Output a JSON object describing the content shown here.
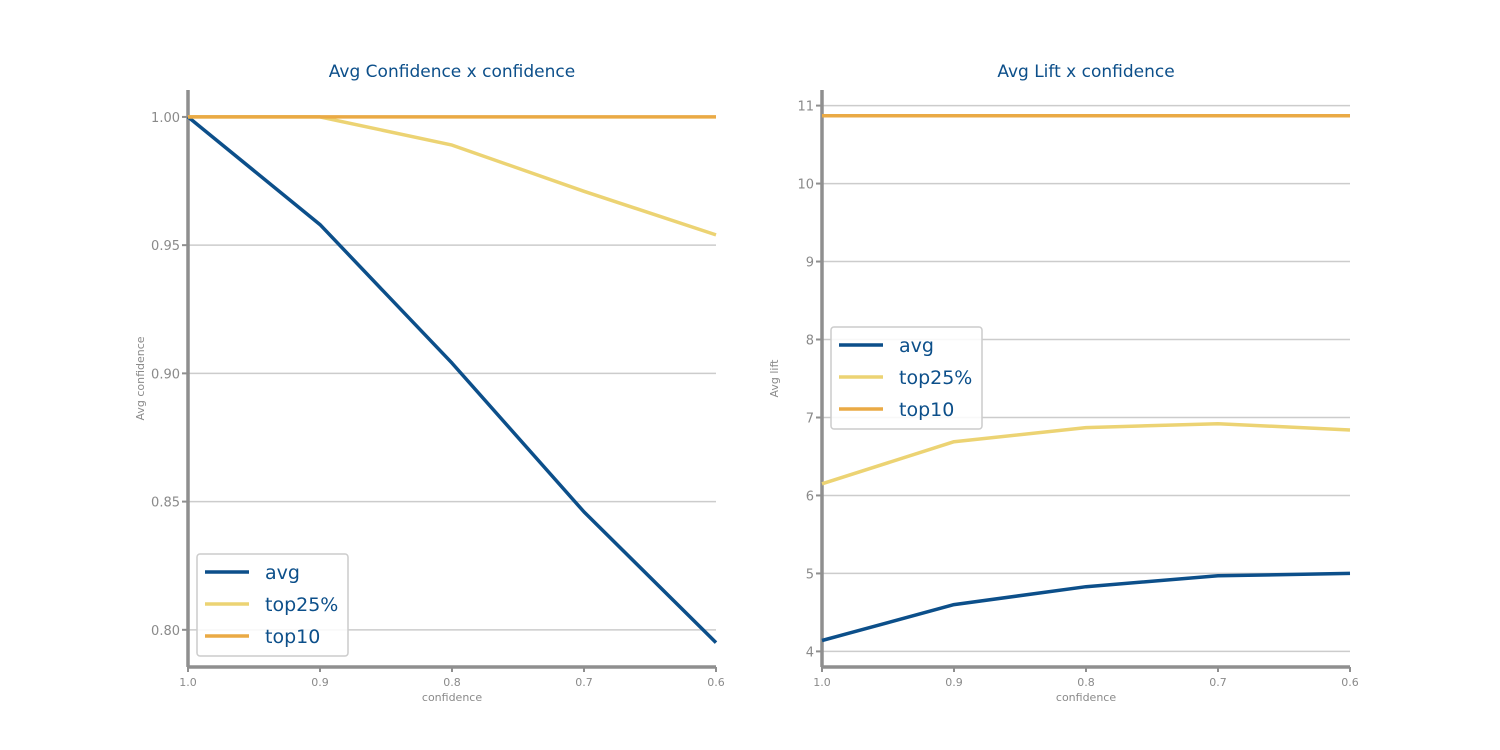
{
  "colors": {
    "title": "#0c4f8a",
    "tick": "#8a8a8a",
    "axis": "#8f8f8f",
    "grid": "#cccccc",
    "legend_text": "#0c4f8a",
    "legend_border": "#cccccc"
  },
  "chart_data": [
    {
      "type": "line",
      "title": "Avg Confidence x confidence",
      "xlabel": "confidence",
      "ylabel": "Avg confidence",
      "x": [
        1.0,
        0.9,
        0.8,
        0.7,
        0.6
      ],
      "x_tick_labels": [
        "1.0",
        "0.9",
        "0.8",
        "0.7",
        "0.6"
      ],
      "xlim": [
        1.0,
        0.6
      ],
      "ylim": [
        0.7855,
        1.0105
      ],
      "y_ticks": [
        0.8,
        0.85,
        0.9,
        0.95,
        1.0
      ],
      "y_tick_labels": [
        "0.80",
        "0.85",
        "0.90",
        "0.95",
        "1.00"
      ],
      "grid": true,
      "legend_position": "lower-left",
      "series": [
        {
          "name": "avg",
          "color": "#0c4f8a",
          "values": [
            1.0,
            0.958,
            0.904,
            0.846,
            0.795
          ]
        },
        {
          "name": "top25%",
          "color": "#ecd373",
          "values": [
            1.0,
            1.0,
            0.989,
            0.971,
            0.954
          ]
        },
        {
          "name": "top10",
          "color": "#eaaa45",
          "values": [
            1.0,
            1.0,
            1.0,
            1.0,
            1.0
          ]
        }
      ]
    },
    {
      "type": "line",
      "title": "Avg Lift x confidence",
      "xlabel": "confidence",
      "ylabel": "Avg lift",
      "x": [
        1.0,
        0.9,
        0.8,
        0.7,
        0.6
      ],
      "x_tick_labels": [
        "1.0",
        "0.9",
        "0.8",
        "0.7",
        "0.6"
      ],
      "xlim": [
        1.0,
        0.6
      ],
      "ylim": [
        3.8,
        11.2
      ],
      "y_ticks": [
        4,
        5,
        6,
        7,
        8,
        9,
        10,
        11
      ],
      "y_tick_labels": [
        "4",
        "5",
        "6",
        "7",
        "8",
        "9",
        "10",
        "11"
      ],
      "grid": true,
      "legend_position": "center-left",
      "series": [
        {
          "name": "avg",
          "color": "#0c4f8a",
          "values": [
            4.14,
            4.6,
            4.83,
            4.97,
            5.0
          ]
        },
        {
          "name": "top25%",
          "color": "#ecd373",
          "values": [
            6.15,
            6.69,
            6.87,
            6.92,
            6.84
          ]
        },
        {
          "name": "top10",
          "color": "#eaaa45",
          "values": [
            10.87,
            10.87,
            10.87,
            10.87,
            10.87
          ]
        }
      ]
    }
  ]
}
